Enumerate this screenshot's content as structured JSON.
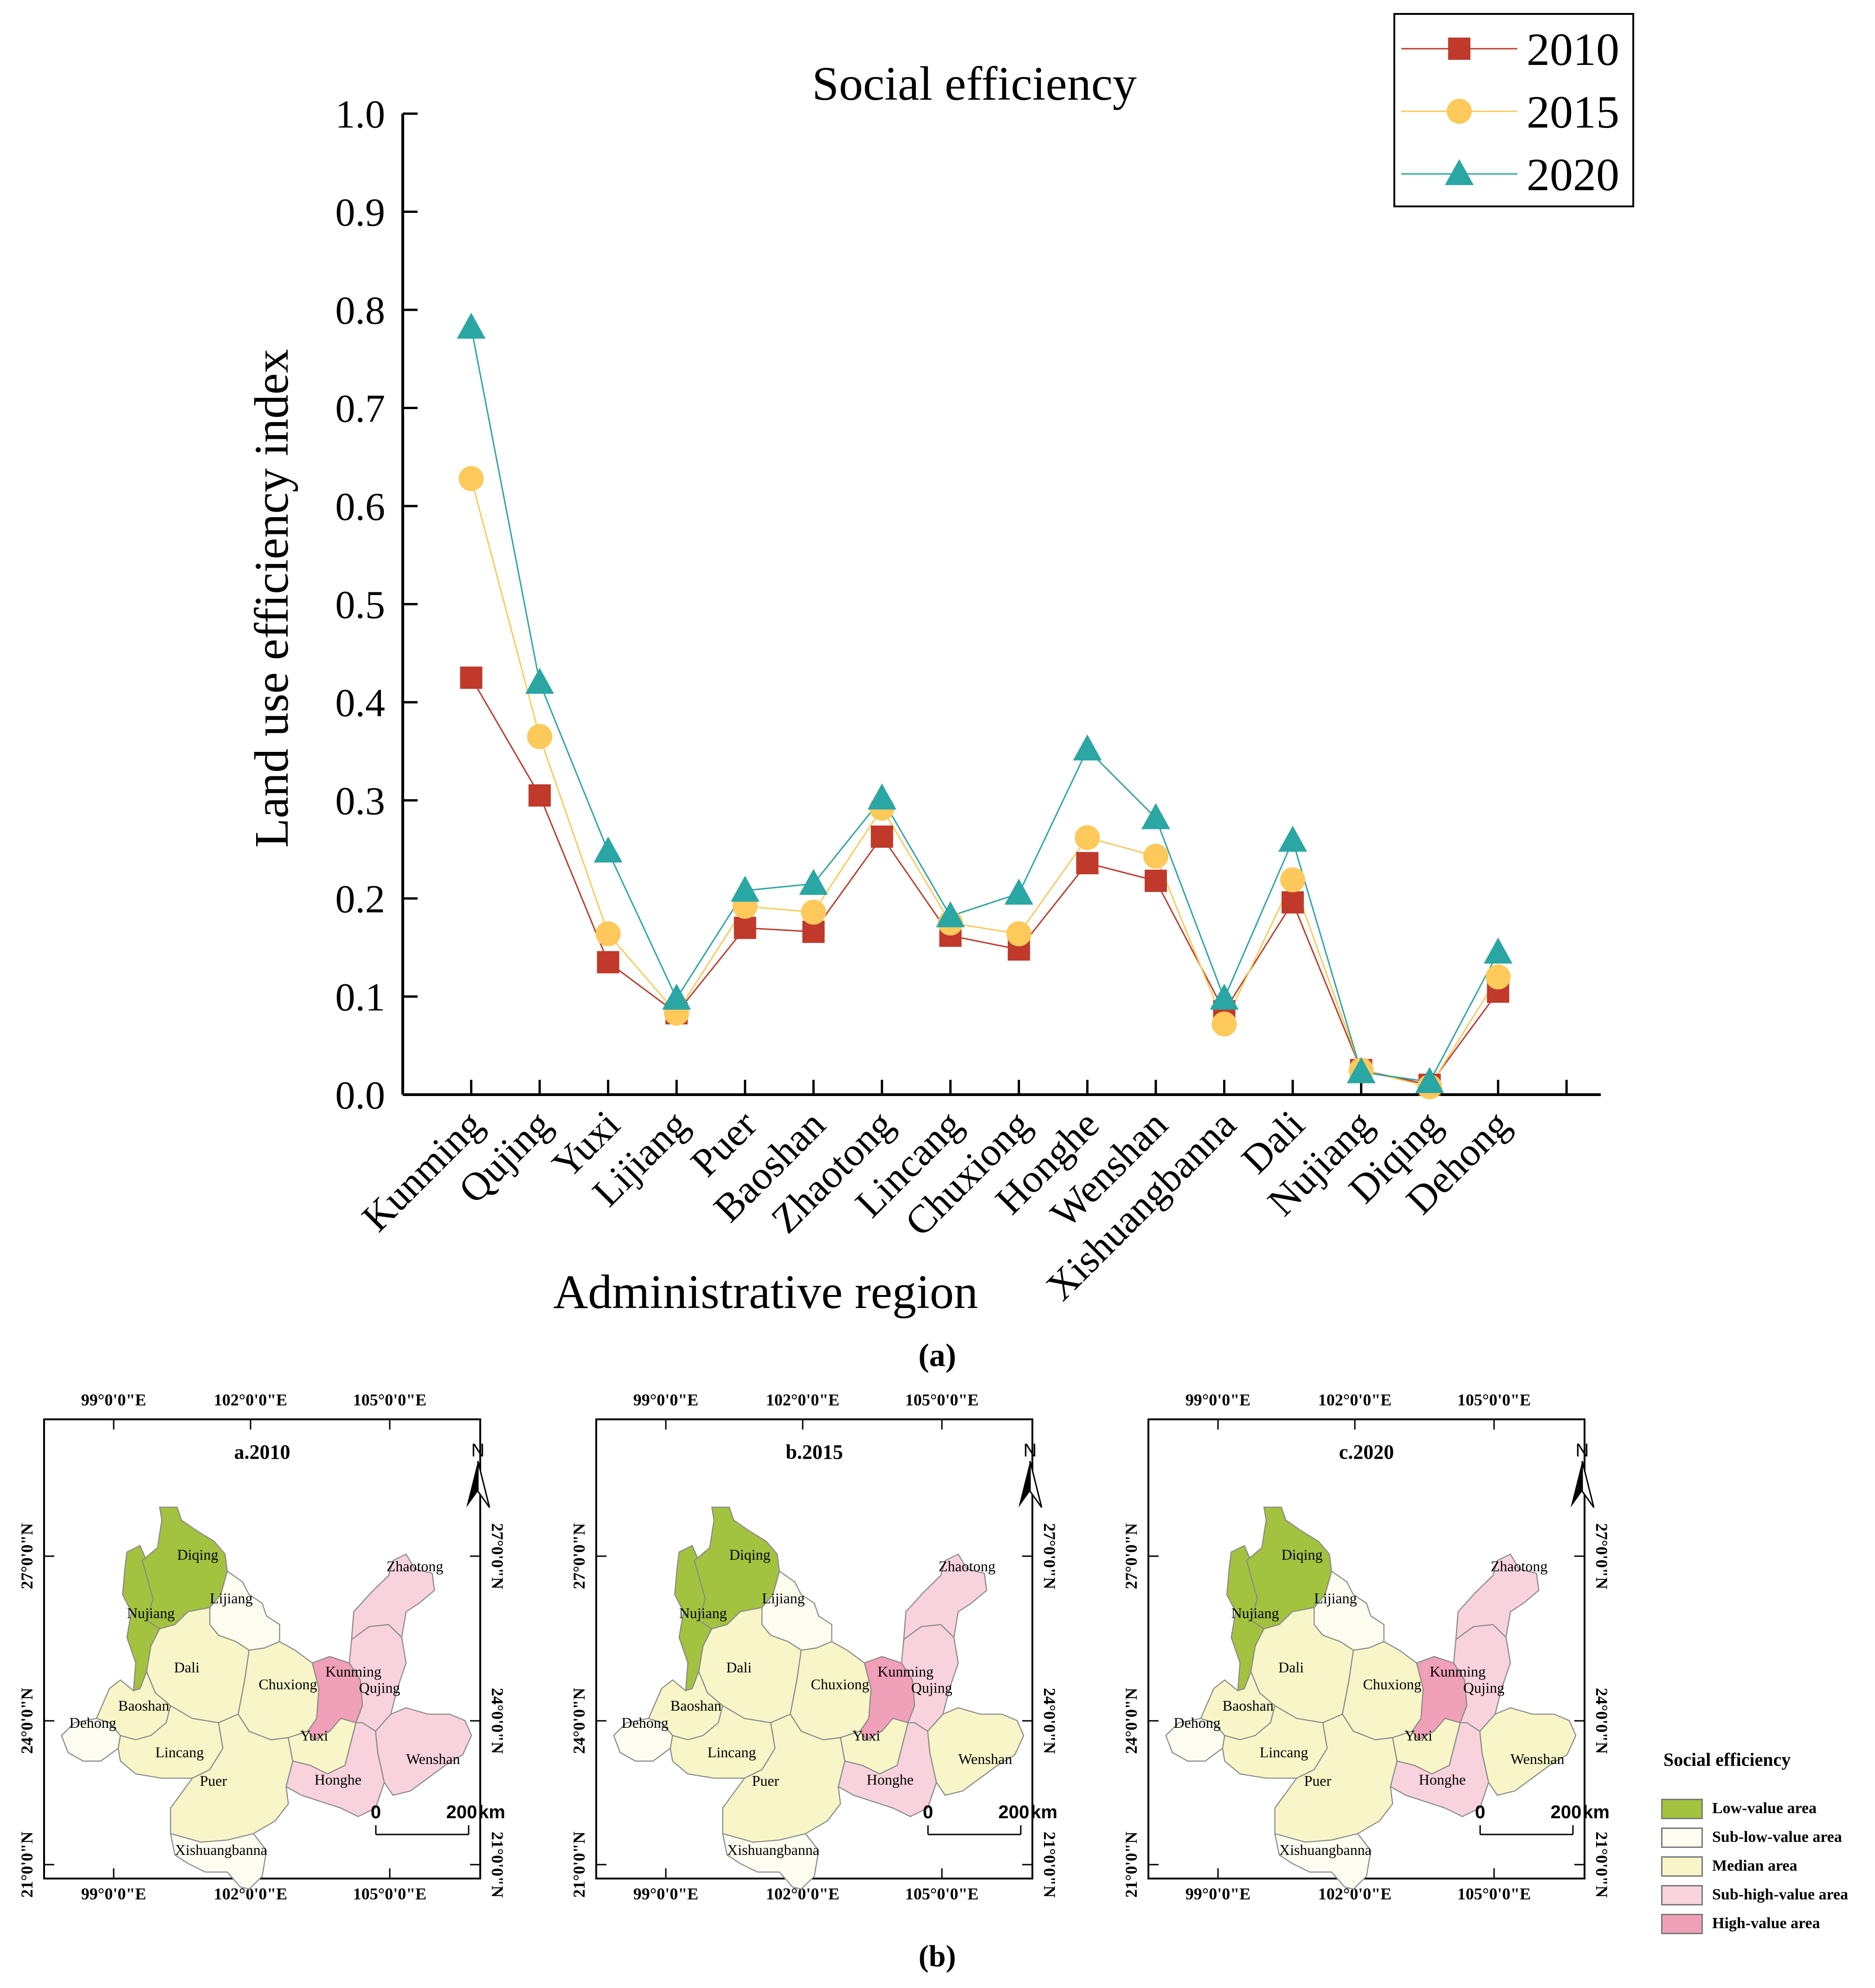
{
  "chart_data": {
    "type": "line",
    "title": "Social efficiency",
    "xlabel": "Administrative region",
    "ylabel": "Land use efficiency index",
    "ylim": [
      0.0,
      1.0
    ],
    "yticks": [
      "0.0",
      "0.1",
      "0.2",
      "0.3",
      "0.4",
      "0.5",
      "0.6",
      "0.7",
      "0.8",
      "0.9",
      "1.0"
    ],
    "categories": [
      "Kunming",
      "Qujing",
      "Yuxi",
      "Lijiang",
      "Puer",
      "Baoshan",
      "Zhaotong",
      "Lincang",
      "Chuxiong",
      "Honghe",
      "Wenshan",
      "Xishuangbanna",
      "Dali",
      "Nujiang",
      "Diqing",
      "Dehong"
    ],
    "series": [
      {
        "name": "2010",
        "color": "#c0392b",
        "marker": "square",
        "values": [
          0.425,
          0.305,
          0.135,
          0.083,
          0.17,
          0.166,
          0.263,
          0.162,
          0.148,
          0.236,
          0.218,
          0.085,
          0.196,
          0.025,
          0.01,
          0.105
        ]
      },
      {
        "name": "2015",
        "color": "#fcc95a",
        "marker": "circle",
        "values": [
          0.628,
          0.365,
          0.164,
          0.083,
          0.192,
          0.186,
          0.292,
          0.175,
          0.164,
          0.262,
          0.243,
          0.072,
          0.219,
          0.025,
          0.008,
          0.12
        ]
      },
      {
        "name": "2020",
        "color": "#2aa6a4",
        "marker": "triangle",
        "values": [
          0.782,
          0.42,
          0.248,
          0.098,
          0.208,
          0.215,
          0.302,
          0.182,
          0.205,
          0.352,
          0.282,
          0.098,
          0.259,
          0.023,
          0.013,
          0.145
        ]
      }
    ],
    "legend_position": "top-right",
    "caption": "(a)"
  },
  "maps": {
    "caption": "(b)",
    "top_coords": [
      "99°0'0\"E",
      "102°0'0\"E",
      "105°0'0\"E"
    ],
    "bottom_coords": [
      "99°0'0\"E",
      "102°0'0\"E",
      "105°0'0\"E"
    ],
    "left_coords": [
      "27°0'0\"N",
      "24°0'0\"N",
      "21°0'0\"N"
    ],
    "right_coords": [
      "27°0'0\"N",
      "24°0'0\"N",
      "21°0'0\"N"
    ],
    "north_label": "N",
    "scale_zero": "0",
    "scale_end": "200",
    "scale_unit": "km",
    "colors": {
      "low": "#a3c23f",
      "sub_low": "#fdfcf0",
      "median": "#f8f6c8",
      "sub_high": "#f8d2dc",
      "high": "#f0a0b8"
    },
    "panels": [
      {
        "title": "a.2010",
        "classes": {
          "Diqing": "low",
          "Nujiang": "low",
          "Lijiang": "sub_low",
          "Dali": "median",
          "Baoshan": "median",
          "Dehong": "sub_low",
          "Lincang": "median",
          "Puer": "median",
          "Xishuangbanna": "sub_low",
          "Chuxiong": "median",
          "Yuxi": "median",
          "Kunming": "high",
          "Qujing": "sub_high",
          "Zhaotong": "sub_high",
          "Honghe": "sub_high",
          "Wenshan": "sub_high"
        }
      },
      {
        "title": "b.2015",
        "classes": {
          "Diqing": "low",
          "Nujiang": "low",
          "Lijiang": "sub_low",
          "Dali": "median",
          "Baoshan": "median",
          "Dehong": "sub_low",
          "Lincang": "median",
          "Puer": "median",
          "Xishuangbanna": "sub_low",
          "Chuxiong": "median",
          "Yuxi": "median",
          "Kunming": "high",
          "Qujing": "sub_high",
          "Zhaotong": "sub_high",
          "Honghe": "sub_high",
          "Wenshan": "median"
        }
      },
      {
        "title": "c.2020",
        "classes": {
          "Diqing": "low",
          "Nujiang": "low",
          "Lijiang": "sub_low",
          "Dali": "median",
          "Baoshan": "median",
          "Dehong": "sub_low",
          "Lincang": "median",
          "Puer": "median",
          "Xishuangbanna": "sub_low",
          "Chuxiong": "median",
          "Yuxi": "median",
          "Kunming": "high",
          "Qujing": "sub_high",
          "Zhaotong": "sub_high",
          "Honghe": "sub_high",
          "Wenshan": "median"
        }
      }
    ],
    "legend": {
      "title": "Social efficiency",
      "items": [
        {
          "key": "low",
          "label": "Low-value area"
        },
        {
          "key": "sub_low",
          "label": "Sub-low-value area"
        },
        {
          "key": "median",
          "label": "Median area"
        },
        {
          "key": "sub_high",
          "label": "Sub-high-value area"
        },
        {
          "key": "high",
          "label": "High-value area"
        }
      ]
    }
  }
}
